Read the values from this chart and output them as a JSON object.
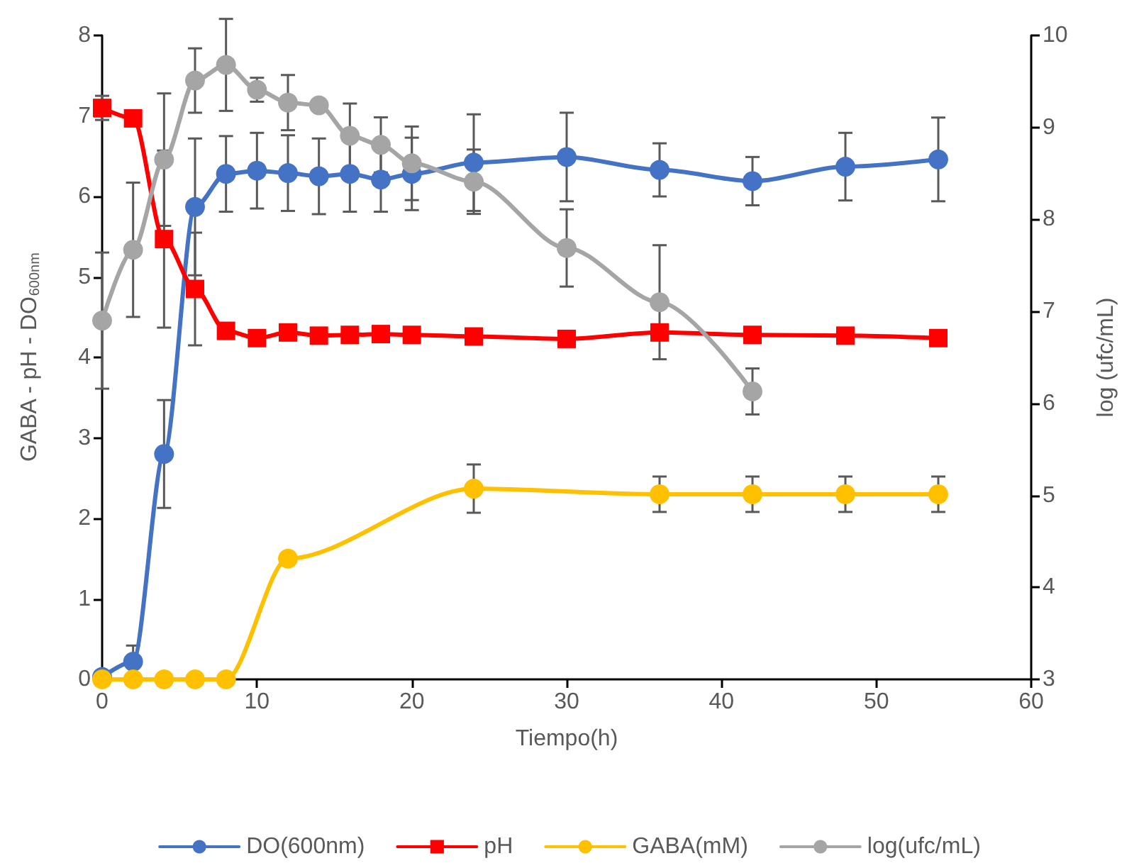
{
  "chart_data": {
    "type": "line",
    "xlabel": "Tiempo(h)",
    "ylabel": "GABA - pH - DO$_{600nm}$",
    "y2label": "log (ufc/mL)",
    "xlim": [
      0,
      60
    ],
    "xticks": [
      0,
      10,
      20,
      30,
      40,
      50,
      60
    ],
    "ylim": [
      0,
      8
    ],
    "yticks": [
      0,
      1,
      2,
      3,
      4,
      5,
      6,
      7,
      8
    ],
    "y2lim": [
      3,
      10
    ],
    "y2ticks": [
      3,
      4,
      5,
      6,
      7,
      8,
      9,
      10
    ],
    "grid": false,
    "legend": "bottom",
    "line_style": "solid",
    "series": [
      {
        "name": "DO(600nm)",
        "color": "#4472c4",
        "marker": "circle",
        "x": [
          0,
          2,
          4,
          6,
          8,
          10,
          12,
          14,
          16,
          18,
          20,
          24,
          30,
          36,
          42,
          48,
          54
        ],
        "values": [
          0.03,
          0.22,
          2.8,
          5.87,
          6.28,
          6.32,
          6.29,
          6.25,
          6.28,
          6.21,
          6.28,
          6.42,
          6.49,
          6.33,
          6.19,
          6.37,
          6.46
        ],
        "errors": [
          null,
          0.2,
          0.67,
          0.85,
          0.47,
          0.47,
          0.47,
          0.47,
          0.47,
          0.4,
          0.45,
          0.6,
          0.55,
          0.33,
          0.3,
          0.42,
          0.52
        ]
      },
      {
        "name": "pH",
        "color": "#ff0000",
        "marker": "square",
        "x": [
          0,
          2,
          4,
          6,
          8,
          10,
          12,
          14,
          16,
          18,
          20,
          24,
          30,
          36,
          42,
          48,
          54
        ],
        "values": [
          7.1,
          6.97,
          5.47,
          4.85,
          4.33,
          4.24,
          4.31,
          4.27,
          4.28,
          4.29,
          4.28,
          4.26,
          4.23,
          4.31,
          4.28,
          4.27,
          4.24
        ],
        "errors": [
          0.15,
          null,
          1.1,
          0.7,
          null,
          null,
          null,
          null,
          null,
          null,
          null,
          null,
          null,
          null,
          null,
          null,
          null
        ]
      },
      {
        "name": "GABA(mM)",
        "color": "#ffc000",
        "marker": "circle",
        "x": [
          0,
          2,
          4,
          6,
          8,
          12,
          24,
          36,
          42,
          48,
          54
        ],
        "values": [
          0,
          0,
          0,
          0,
          0,
          1.5,
          2.37,
          2.3,
          2.3,
          2.3,
          2.3
        ],
        "errors": [
          null,
          null,
          null,
          null,
          null,
          null,
          0.3,
          0.22,
          0.22,
          0.22,
          0.22
        ]
      },
      {
        "name": "log(ufc/mL)",
        "color": "#a5a5a5",
        "marker": "circle",
        "axis": "y2",
        "x": [
          0,
          2,
          4,
          6,
          8,
          10,
          12,
          14,
          16,
          18,
          20,
          24,
          30,
          36,
          42
        ],
        "values": [
          6.9,
          7.67,
          8.65,
          9.51,
          9.68,
          9.41,
          9.27,
          9.24,
          8.91,
          8.81,
          8.61,
          8.41,
          7.69,
          7.1,
          6.13
        ],
        "errors": [
          0.74,
          0.73,
          0.72,
          0.35,
          0.5,
          0.13,
          0.3,
          null,
          0.35,
          0.3,
          0.4,
          0.35,
          0.42,
          0.62,
          0.25
        ]
      }
    ]
  }
}
